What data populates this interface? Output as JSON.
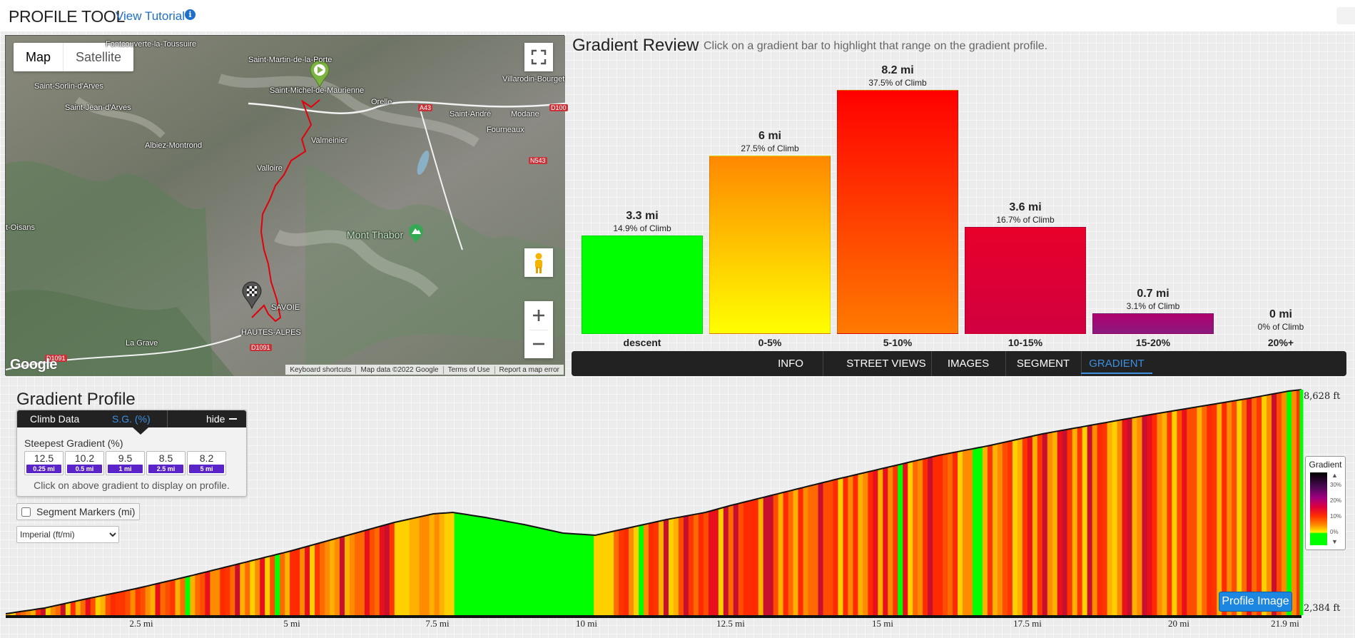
{
  "header": {
    "title": "PROFILE TOOL",
    "tutorial_link": "View Tutorial",
    "info_icon": "i"
  },
  "map": {
    "type_buttons": {
      "map": "Map",
      "satellite": "Satellite"
    },
    "places": {
      "p1": "Saint-Martin-de-la-Porte",
      "p2": "Saint-Michel-de-Maurienne",
      "p3": "Saint-Sorlin-d'Arves",
      "p4": "Saint-Jean-d'Arves",
      "p5": "Albiez-Montrond",
      "p6": "Valloire",
      "p7": "Valmeinier",
      "p8": "Orelle",
      "p9": "Saint-André",
      "p10": "Modane",
      "p11": "Fourneaux",
      "p12": "Villarodin-Bourget",
      "p13": "Mont Thabor",
      "p14": "SAVOIE",
      "p15": "HAUTES-ALPES",
      "p16": "La Grave",
      "p17": "t-Oisans",
      "p18": "Fontcouverte-la-Toussuire"
    },
    "roads": {
      "r1": "A43",
      "r2": "N543",
      "r3": "D1091",
      "r4": "D1091",
      "r5": "D100"
    },
    "footer": {
      "shortcuts": "Keyboard shortcuts",
      "data": "Map data ©2022 Google",
      "terms": "Terms of Use",
      "report": "Report a map error"
    },
    "logo": "Google"
  },
  "gradient_review": {
    "title": "Gradient Review",
    "subtitle": "Click on a gradient bar to highlight that range on the gradient profile.",
    "bars": [
      {
        "distance": "3.3 mi",
        "percent": "14.9% of Climb",
        "category": "descent",
        "value": 3.3,
        "color_top": "#00ff00",
        "color_bottom": "#00ff00"
      },
      {
        "distance": "6 mi",
        "percent": "27.5% of Climb",
        "category": "0-5%",
        "value": 6,
        "color_top": "#ff8800",
        "color_bottom": "#ffff00"
      },
      {
        "distance": "8.2 mi",
        "percent": "37.5% of Climb",
        "category": "5-10%",
        "value": 8.2,
        "color_top": "#ff0000",
        "color_bottom": "#ff7a00"
      },
      {
        "distance": "3.6 mi",
        "percent": "16.7% of Climb",
        "category": "10-15%",
        "value": 3.6,
        "color_top": "#e8002a",
        "color_bottom": "#d10040"
      },
      {
        "distance": "0.7 mi",
        "percent": "3.1% of Climb",
        "category": "15-20%",
        "value": 0.7,
        "color_top": "#b0006e",
        "color_bottom": "#8a1a80"
      },
      {
        "distance": "0 mi",
        "percent": "0% of Climb",
        "category": "20%+",
        "value": 0,
        "color_top": "#000000",
        "color_bottom": "#000000"
      }
    ]
  },
  "tabs": [
    "INFO",
    "STREET VIEWS",
    "IMAGES",
    "SEGMENT",
    "GRADIENT"
  ],
  "gradient_profile": {
    "title": "Gradient Profile",
    "panel_tabs": {
      "climb_data": "Climb Data",
      "sg": "S.G. (%)",
      "hide": "hide"
    },
    "steepest_label": "Steepest Gradient (%)",
    "steepest": [
      {
        "value": "12.5",
        "distance": "0.25 mi"
      },
      {
        "value": "10.2",
        "distance": "0.5 mi"
      },
      {
        "value": "9.5",
        "distance": "1 mi"
      },
      {
        "value": "8.5",
        "distance": "2.5 mi"
      },
      {
        "value": "8.2",
        "distance": "5 mi"
      }
    ],
    "note": "Click on above gradient to display on profile.",
    "segment_markers": "Segment Markers (mi)",
    "units": "Imperial (ft/mi)",
    "elev_max": "8,628 ft",
    "elev_min": "2,384 ft",
    "x_ticks": [
      "2.5 mi",
      "5 mi",
      "7.5 mi",
      "10 mi",
      "12.5 mi",
      "15 mi",
      "17.5 mi",
      "20 mi",
      "21.9 mi"
    ],
    "legend": {
      "title": "Gradient",
      "ticks": [
        "30%",
        "20%",
        "10%",
        "0%"
      ]
    },
    "profile_image_button": "Profile Image"
  }
}
